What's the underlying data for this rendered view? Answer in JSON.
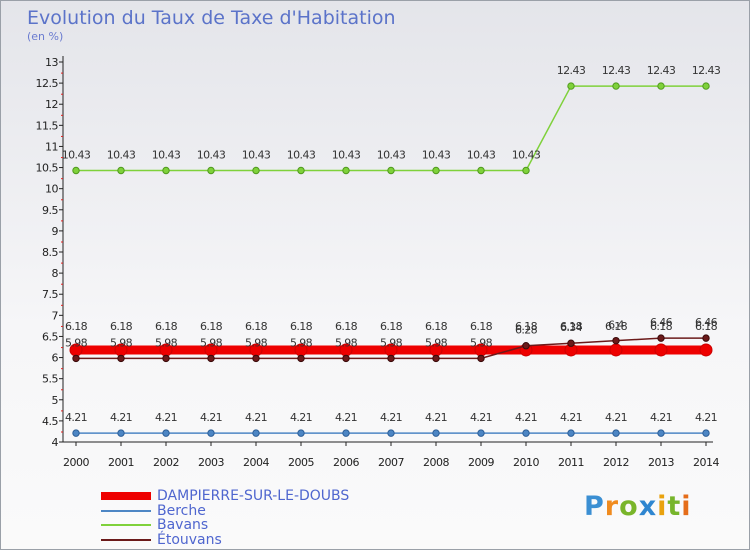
{
  "colors": {
    "dampierre": "#ee0000",
    "berche": "#4d86c4",
    "bavans": "#7fd13b",
    "etouvans": "#6b1a1a",
    "axis_text": "#222222",
    "label_text": "#333333",
    "title": "#5b73c9"
  },
  "logo": {
    "text": "Proxiti",
    "p": "P",
    "r": "r",
    "o": "o",
    "x": "x",
    "i": "i",
    "t": "t",
    "i2": "i"
  },
  "chart_data": {
    "type": "line",
    "title": "Evolution du Taux de Taxe d'Habitation",
    "subtitle": "(en %)",
    "xlabel": "",
    "ylabel": "",
    "x": [
      "2000",
      "2001",
      "2002",
      "2003",
      "2004",
      "2005",
      "2006",
      "2007",
      "2008",
      "2009",
      "2010",
      "2011",
      "2012",
      "2013",
      "2014"
    ],
    "ylim": [
      4,
      13
    ],
    "yticks": [
      "4",
      "4.5",
      "5",
      "5.5",
      "6",
      "6.5",
      "7",
      "7.5",
      "8",
      "8.5",
      "9",
      "9.5",
      "10",
      "10.5",
      "11",
      "11.5",
      "12",
      "12.5",
      "13"
    ],
    "grid": false,
    "legend_position": "bottom-left",
    "series": [
      {
        "name": "DAMPIERRE-SUR-LE-DOUBS",
        "color_key": "dampierre",
        "values": [
          6.18,
          6.18,
          6.18,
          6.18,
          6.18,
          6.18,
          6.18,
          6.18,
          6.18,
          6.18,
          6.18,
          6.18,
          6.18,
          6.18,
          6.18
        ],
        "labels": [
          "6.18",
          "6.18",
          "6.18",
          "6.18",
          "6.18",
          "6.18",
          "6.18",
          "6.18",
          "6.18",
          "6.18",
          "6.18",
          "6.18",
          "6.18",
          "6.18",
          "6.18"
        ]
      },
      {
        "name": "Berche",
        "color_key": "berche",
        "values": [
          4.21,
          4.21,
          4.21,
          4.21,
          4.21,
          4.21,
          4.21,
          4.21,
          4.21,
          4.21,
          4.21,
          4.21,
          4.21,
          4.21,
          4.21
        ],
        "labels": [
          "4.21",
          "4.21",
          "4.21",
          "4.21",
          "4.21",
          "4.21",
          "4.21",
          "4.21",
          "4.21",
          "4.21",
          "4.21",
          "4.21",
          "4.21",
          "4.21",
          "4.21"
        ]
      },
      {
        "name": "Bavans",
        "color_key": "bavans",
        "values": [
          10.43,
          10.43,
          10.43,
          10.43,
          10.43,
          10.43,
          10.43,
          10.43,
          10.43,
          10.43,
          10.43,
          12.43,
          12.43,
          12.43,
          12.43
        ],
        "labels": [
          "10.43",
          "10.43",
          "10.43",
          "10.43",
          "10.43",
          "10.43",
          "10.43",
          "10.43",
          "10.43",
          "10.43",
          "10.43",
          "12.43",
          "12.43",
          "12.43",
          "12.43"
        ]
      },
      {
        "name": "Étouvans",
        "color_key": "etouvans",
        "values": [
          5.98,
          5.98,
          5.98,
          5.98,
          5.98,
          5.98,
          5.98,
          5.98,
          5.98,
          5.98,
          6.28,
          6.34,
          6.4,
          6.46,
          6.46
        ],
        "labels": [
          "5.98",
          "5.98",
          "5.98",
          "5.98",
          "5.98",
          "5.98",
          "5.98",
          "5.98",
          "5.98",
          "5.98",
          "6.28",
          "6.34",
          "6.4",
          "6.46",
          "6.46"
        ]
      }
    ]
  }
}
